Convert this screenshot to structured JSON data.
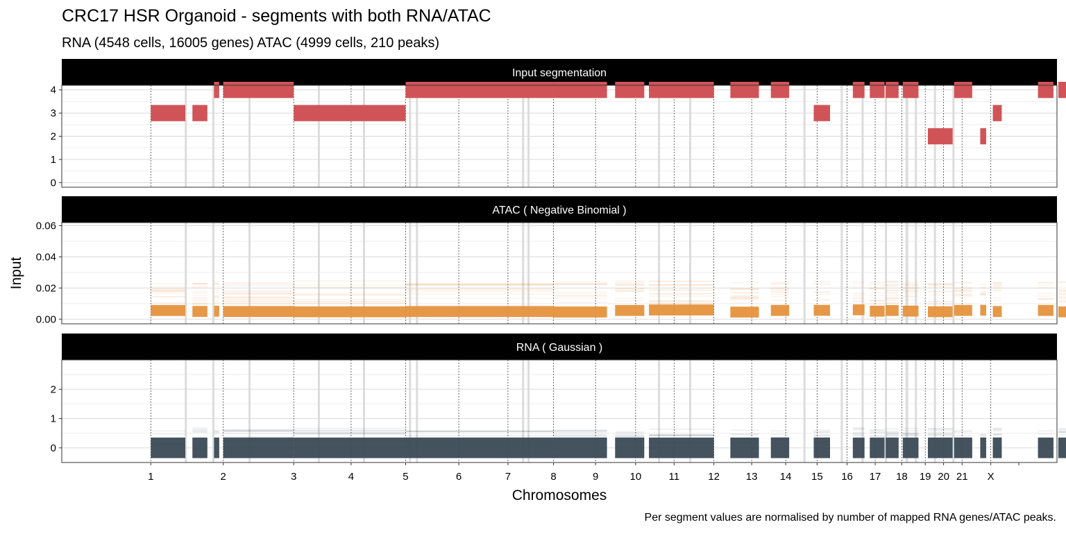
{
  "chart_data": {
    "type": "faceted-segment-plot",
    "title": "CRC17 HSR Organoid - segments with both RNA/ATAC",
    "subtitle": "RNA (4548 cells, 16005 genes) ATAC (4999 cells, 210 peaks)",
    "xlabel": "Chromosomes",
    "ylabel": "Input",
    "caption": "Per segment values are normalised by number of mapped RNA genes/ATAC peaks.",
    "grid": true,
    "colors": {
      "segmentation": "#d05457",
      "atac": "#e5923d",
      "rna": "#3a4a55",
      "strip": "#000000",
      "gap": "#dcdcdc",
      "grid": "#d9d9d9",
      "boundary": "#444444"
    },
    "x_range": [
      0,
      1.0
    ],
    "chromosome_ticks": [
      {
        "label": "1",
        "x": 0.0482
      },
      {
        "label": "2",
        "x": 0.1276
      },
      {
        "label": "3",
        "x": 0.2049
      },
      {
        "label": "4",
        "x": 0.2678
      },
      {
        "label": "5",
        "x": 0.3276
      },
      {
        "label": "6",
        "x": 0.3859
      },
      {
        "label": "7",
        "x": 0.4398
      },
      {
        "label": "8",
        "x": 0.4898
      },
      {
        "label": "9",
        "x": 0.5359
      },
      {
        "label": "10",
        "x": 0.5798
      },
      {
        "label": "11",
        "x": 0.622
      },
      {
        "label": "12",
        "x": 0.6656
      },
      {
        "label": "13",
        "x": 0.7071
      },
      {
        "label": "14",
        "x": 0.7444
      },
      {
        "label": "15",
        "x": 0.7788
      },
      {
        "label": "16",
        "x": 0.8117
      },
      {
        "label": "17",
        "x": 0.8425
      },
      {
        "label": "18",
        "x": 0.8717
      },
      {
        "label": "19",
        "x": 0.8974
      },
      {
        "label": "20",
        "x": 0.9175
      },
      {
        "label": "21",
        "x": 0.9378
      },
      {
        "label": "X",
        "x": 0.9693
      },
      {
        "label": "",
        "x": 1.0
      }
    ],
    "gap_regions": [
      [
        0.0854,
        0.0877
      ],
      [
        0.1156,
        0.1178
      ],
      [
        0.1553,
        0.1568
      ],
      [
        0.2313,
        0.2335
      ],
      [
        0.2808,
        0.2822
      ],
      [
        0.3313,
        0.3328
      ],
      [
        0.3389,
        0.3404
      ],
      [
        0.4553,
        0.4568
      ],
      [
        0.4612,
        0.4627
      ],
      [
        0.6043,
        0.6058
      ],
      [
        0.6385,
        0.64
      ],
      [
        0.7638,
        0.766
      ],
      [
        0.8047,
        0.8062
      ],
      [
        0.8276,
        0.8291
      ],
      [
        0.8532,
        0.8547
      ],
      [
        0.8758,
        0.8787
      ],
      [
        0.886,
        0.8875
      ],
      [
        0.9069,
        0.9084
      ],
      [
        0.9272,
        0.9287
      ]
    ],
    "panels": [
      {
        "name": "Input segmentation",
        "ylim": [
          -0.2,
          4.2
        ],
        "yticks": [
          0,
          1,
          2,
          3,
          4
        ],
        "segments": [
          {
            "start": 0.0482,
            "end": 0.086,
            "value": 3
          },
          {
            "start": 0.0938,
            "end": 0.1102,
            "value": 3
          },
          {
            "start": 0.1175,
            "end": 0.1232,
            "value": 4
          },
          {
            "start": 0.1276,
            "end": 0.2049,
            "value": 4
          },
          {
            "start": 0.2049,
            "end": 0.3276,
            "value": 3
          },
          {
            "start": 0.3276,
            "end": 0.4898,
            "value": 4
          },
          {
            "start": 0.4898,
            "end": 0.5484,
            "value": 4
          },
          {
            "start": 0.5573,
            "end": 0.5893,
            "value": 4
          },
          {
            "start": 0.5944,
            "end": 0.6656,
            "value": 4
          },
          {
            "start": 0.6837,
            "end": 0.715,
            "value": 4
          },
          {
            "start": 0.7281,
            "end": 0.7482,
            "value": 4
          },
          {
            "start": 0.7751,
            "end": 0.793,
            "value": 3
          },
          {
            "start": 0.818,
            "end": 0.8308,
            "value": 4
          },
          {
            "start": 0.8366,
            "end": 0.8528,
            "value": 4
          },
          {
            "start": 0.854,
            "end": 0.8682,
            "value": 4
          },
          {
            "start": 0.8728,
            "end": 0.89,
            "value": 4
          },
          {
            "start": 0.9003,
            "end": 0.9274,
            "value": 2
          },
          {
            "start": 0.9291,
            "end": 0.9489,
            "value": 4
          },
          {
            "start": 0.9577,
            "end": 0.9642,
            "value": 2
          },
          {
            "start": 0.9715,
            "end": 0.9813,
            "value": 3
          },
          {
            "start": 1.021,
            "end": 1.038,
            "value": 4
          },
          {
            "start": 1.0433,
            "end": 1.0683,
            "value": 4
          }
        ]
      },
      {
        "name": "ATAC ( Negative Binomial )",
        "ylim": [
          -0.003,
          0.062
        ],
        "yticks": [
          0.0,
          0.02,
          0.04,
          0.06
        ],
        "ytick_labels": [
          "0.00",
          "0.02",
          "0.04",
          "0.06"
        ]
      },
      {
        "name": "RNA ( Gaussian )",
        "ylim": [
          -0.5,
          3.0
        ],
        "yticks": [
          0,
          1,
          2
        ],
        "ytick_labels": [
          "0",
          "1",
          "2"
        ]
      }
    ]
  }
}
